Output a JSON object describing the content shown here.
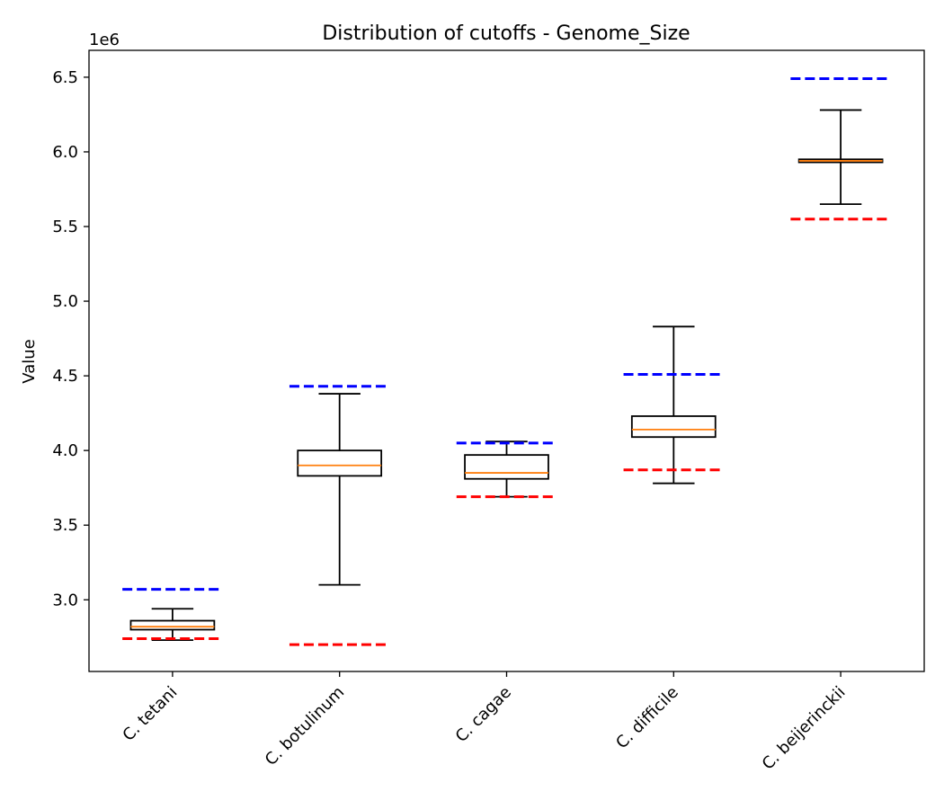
{
  "chart_data": {
    "type": "box",
    "title": "Distribution of cutoffs - Genome_Size",
    "xlabel": "",
    "ylabel": "Value",
    "y_offset_label": "1e6",
    "ylim": [
      2.52,
      6.68
    ],
    "yticks": [
      3.0,
      3.5,
      4.0,
      4.5,
      5.0,
      5.5,
      6.0,
      6.5
    ],
    "ytick_labels": [
      "3.0",
      "3.5",
      "4.0",
      "4.5",
      "5.0",
      "5.5",
      "6.0",
      "6.5"
    ],
    "grid": false,
    "categories": [
      "C. tetani",
      "C. botulinum",
      "C. cagae",
      "C. difficile",
      "C. beijerinckii"
    ],
    "boxes": [
      {
        "whisker_low": 2.73,
        "q1": 2.8,
        "median": 2.82,
        "q3": 2.86,
        "whisker_high": 2.94
      },
      {
        "whisker_low": 3.1,
        "q1": 3.83,
        "median": 3.9,
        "q3": 4.0,
        "whisker_high": 4.38
      },
      {
        "whisker_low": 3.69,
        "q1": 3.81,
        "median": 3.85,
        "q3": 3.97,
        "whisker_high": 4.06
      },
      {
        "whisker_low": 3.78,
        "q1": 4.09,
        "median": 4.14,
        "q3": 4.23,
        "whisker_high": 4.83
      },
      {
        "whisker_low": 5.65,
        "q1": 5.93,
        "median": 5.94,
        "q3": 5.95,
        "whisker_high": 6.28
      }
    ],
    "upper_cutoffs": [
      3.07,
      4.43,
      4.05,
      4.51,
      6.49
    ],
    "lower_cutoffs": [
      2.74,
      2.7,
      3.69,
      3.87,
      5.55
    ],
    "colors": {
      "box": "#000000",
      "median": "#ff7f0e",
      "upper_cutoff": "#0000ff",
      "lower_cutoff": "#ff0000"
    }
  }
}
